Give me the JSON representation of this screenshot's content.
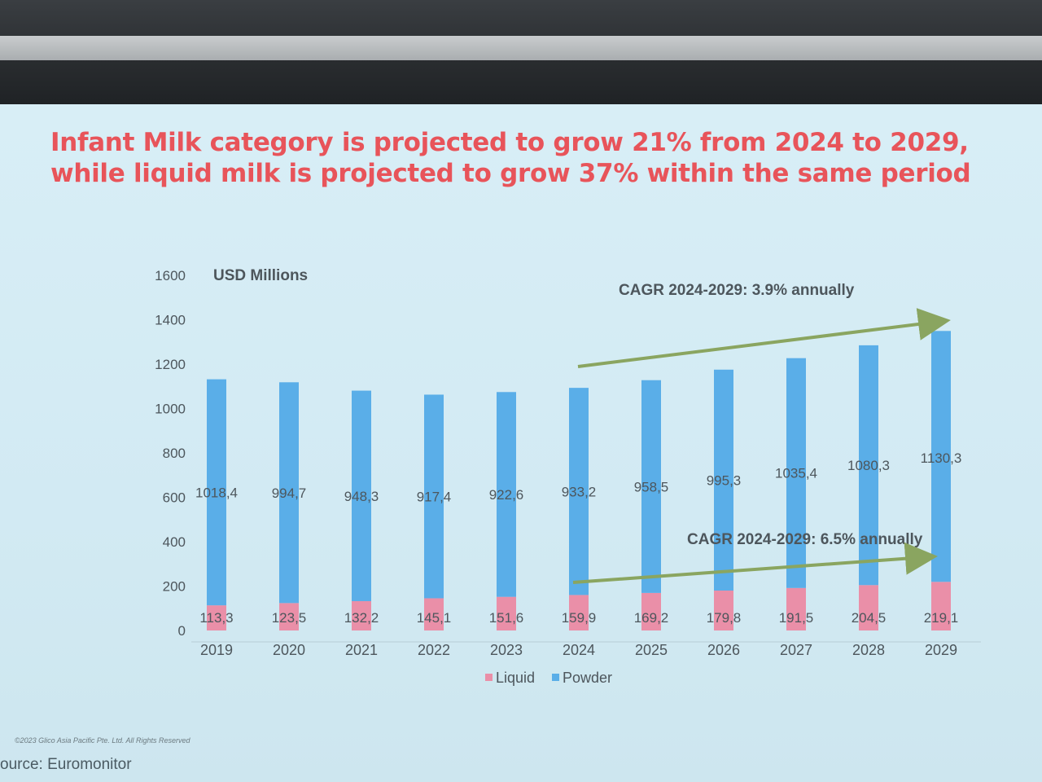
{
  "slide": {
    "headline_line1": "Infant Milk category is projected to grow 21% from 2024 to 2029,",
    "headline_line2": "while liquid milk is projected to grow 37% within the same period",
    "copyright": "©2023 Glico Asia Pacific Pte. Ltd. All Rights Reserved",
    "source": "ource: Euromonitor"
  },
  "colors": {
    "headline": "#e8545a",
    "liquid": "#ea8fa8",
    "powder": "#5aaee8",
    "arrow": "#8aa560",
    "text": "#4d565c"
  },
  "chart_data": {
    "type": "bar",
    "stacked": true,
    "unit_label": "USD Millions",
    "categories": [
      "2019",
      "2020",
      "2021",
      "2022",
      "2023",
      "2024",
      "2025",
      "2026",
      "2027",
      "2028",
      "2029"
    ],
    "series": [
      {
        "name": "Liquid",
        "values": [
          113.3,
          123.5,
          132.2,
          145.1,
          151.6,
          159.9,
          169.2,
          179.8,
          191.5,
          204.5,
          219.1
        ],
        "labels": [
          "113,3",
          "123,5",
          "132,2",
          "145,1",
          "151,6",
          "159,9",
          "169,2",
          "179,8",
          "191,5",
          "204,5",
          "219,1"
        ]
      },
      {
        "name": "Powder",
        "values": [
          1018.4,
          994.7,
          948.3,
          917.4,
          922.6,
          933.2,
          958.5,
          995.3,
          1035.4,
          1080.3,
          1130.3
        ],
        "labels": [
          "1018,4",
          "994,7",
          "948,3",
          "917,4",
          "922,6",
          "933,2",
          "958,5",
          "995,3",
          "1035,4",
          "1080,3",
          "1130,3"
        ]
      }
    ],
    "ylim": [
      0,
      1600
    ],
    "yticks": [
      "0",
      "200",
      "400",
      "600",
      "800",
      "1000",
      "1200",
      "1400",
      "1600"
    ],
    "legend": [
      "Liquid",
      "Powder"
    ],
    "annotations": {
      "cagr_total": "CAGR 2024-2029: 3.9% annually",
      "cagr_liquid": "CAGR 2024-2029: 6.5% annually"
    }
  }
}
